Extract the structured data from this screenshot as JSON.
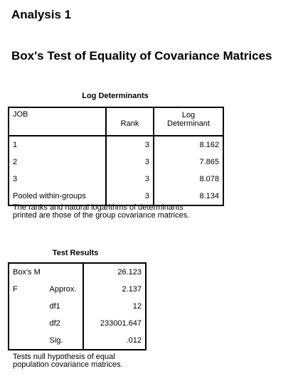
{
  "header": {
    "analysis_title": "Analysis 1",
    "section_title": "Box's Test of Equality of Covariance Matrices"
  },
  "log_determinants": {
    "title": "Log Determinants",
    "columns": {
      "job": "JOB",
      "rank": "Rank",
      "log_det_line1": "Log",
      "log_det_line2": "Determinant"
    },
    "rows": [
      {
        "label": "1",
        "rank": "3",
        "log_det": "8.162"
      },
      {
        "label": "2",
        "rank": "3",
        "log_det": "7.865"
      },
      {
        "label": "3",
        "rank": "3",
        "log_det": "8.078"
      },
      {
        "label": "Pooled within-groups",
        "rank": "3",
        "log_det": "8.134"
      }
    ],
    "footnote_line1": "The ranks and natural logarithms of determinants",
    "footnote_line2": "printed are those of the group covariance matrices."
  },
  "test_results": {
    "title": "Test Results",
    "boxs_m": {
      "label": "Box's M",
      "value": "26.123"
    },
    "f_label": "F",
    "rows": [
      {
        "label": "Approx.",
        "value": "2.137"
      },
      {
        "label": "df1",
        "value": "12"
      },
      {
        "label": "df2",
        "value": "233001.647"
      },
      {
        "label": "Sig.",
        "value": ".012"
      }
    ],
    "footnote_line1": "Tests null hypothesis of equal",
    "footnote_line2": "population covariance matrices."
  }
}
